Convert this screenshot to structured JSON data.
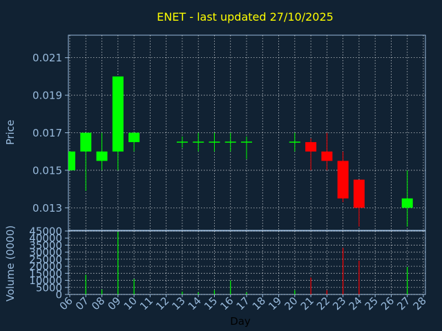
{
  "chart_data": [
    {
      "type": "candlestick",
      "title": "ENET - last updated 27/10/2025",
      "xlabel": "Day",
      "ylabel": "Price",
      "ylim": [
        0.0118,
        0.0222
      ],
      "y_ticks": [
        "0.013",
        "0.015",
        "0.017",
        "0.019",
        "0.021"
      ],
      "x_ticks": [
        "06",
        "07",
        "08",
        "09",
        "10",
        "11",
        "12",
        "13",
        "14",
        "15",
        "16",
        "17",
        "18",
        "19",
        "20",
        "21",
        "22",
        "23",
        "24",
        "25",
        "26",
        "27",
        "28"
      ],
      "grid": true,
      "colors": {
        "up": "#00ff00",
        "down": "#ff0000",
        "flat": "#00ff00",
        "text": "#ffff00",
        "axis": "#99bbdd",
        "grid": "#ffffff"
      },
      "candles": [
        {
          "day": 6,
          "open": 0.015,
          "high": 0.016,
          "low": 0.015,
          "close": 0.016
        },
        {
          "day": 7,
          "open": 0.016,
          "high": 0.017,
          "low": 0.0139,
          "close": 0.017
        },
        {
          "day": 8,
          "open": 0.0155,
          "high": 0.017,
          "low": 0.015,
          "close": 0.016
        },
        {
          "day": 9,
          "open": 0.016,
          "high": 0.02,
          "low": 0.015,
          "close": 0.02
        },
        {
          "day": 10,
          "open": 0.0165,
          "high": 0.017,
          "low": 0.016,
          "close": 0.017
        },
        {
          "day": 13,
          "open": 0.0165,
          "high": 0.0168,
          "low": 0.0162,
          "close": 0.0165
        },
        {
          "day": 14,
          "open": 0.0165,
          "high": 0.017,
          "low": 0.016,
          "close": 0.0165
        },
        {
          "day": 15,
          "open": 0.0165,
          "high": 0.017,
          "low": 0.016,
          "close": 0.0165
        },
        {
          "day": 16,
          "open": 0.0165,
          "high": 0.017,
          "low": 0.016,
          "close": 0.0165
        },
        {
          "day": 17,
          "open": 0.0165,
          "high": 0.0168,
          "low": 0.0156,
          "close": 0.0165
        },
        {
          "day": 20,
          "open": 0.0165,
          "high": 0.017,
          "low": 0.016,
          "close": 0.0165
        },
        {
          "day": 21,
          "open": 0.0165,
          "high": 0.0167,
          "low": 0.015,
          "close": 0.016
        },
        {
          "day": 22,
          "open": 0.016,
          "high": 0.017,
          "low": 0.015,
          "close": 0.0155
        },
        {
          "day": 23,
          "open": 0.0155,
          "high": 0.016,
          "low": 0.0133,
          "close": 0.0135
        },
        {
          "day": 24,
          "open": 0.0145,
          "high": 0.0145,
          "low": 0.012,
          "close": 0.013
        },
        {
          "day": 27,
          "open": 0.013,
          "high": 0.015,
          "low": 0.012,
          "close": 0.0135
        }
      ]
    },
    {
      "type": "bar",
      "xlabel": "Day",
      "ylabel": "Volume (0000)",
      "ylim": [
        0,
        45000
      ],
      "y_ticks": [
        "0",
        "5000",
        "10000",
        "15000",
        "20000",
        "25000",
        "30000",
        "35000",
        "40000",
        "45000"
      ],
      "volumes": [
        {
          "day": 6,
          "value": 0,
          "dir": "up"
        },
        {
          "day": 7,
          "value": 14000,
          "dir": "up"
        },
        {
          "day": 8,
          "value": 3500,
          "dir": "up"
        },
        {
          "day": 9,
          "value": 44500,
          "dir": "up"
        },
        {
          "day": 10,
          "value": 11000,
          "dir": "up"
        },
        {
          "day": 13,
          "value": 2000,
          "dir": "up"
        },
        {
          "day": 14,
          "value": 1500,
          "dir": "up"
        },
        {
          "day": 15,
          "value": 3000,
          "dir": "up"
        },
        {
          "day": 16,
          "value": 10000,
          "dir": "up"
        },
        {
          "day": 17,
          "value": 1500,
          "dir": "up"
        },
        {
          "day": 20,
          "value": 3000,
          "dir": "up"
        },
        {
          "day": 21,
          "value": 12000,
          "dir": "down"
        },
        {
          "day": 22,
          "value": 3000,
          "dir": "down"
        },
        {
          "day": 23,
          "value": 33000,
          "dir": "down"
        },
        {
          "day": 24,
          "value": 24000,
          "dir": "down"
        },
        {
          "day": 27,
          "value": 19500,
          "dir": "up"
        }
      ]
    }
  ]
}
